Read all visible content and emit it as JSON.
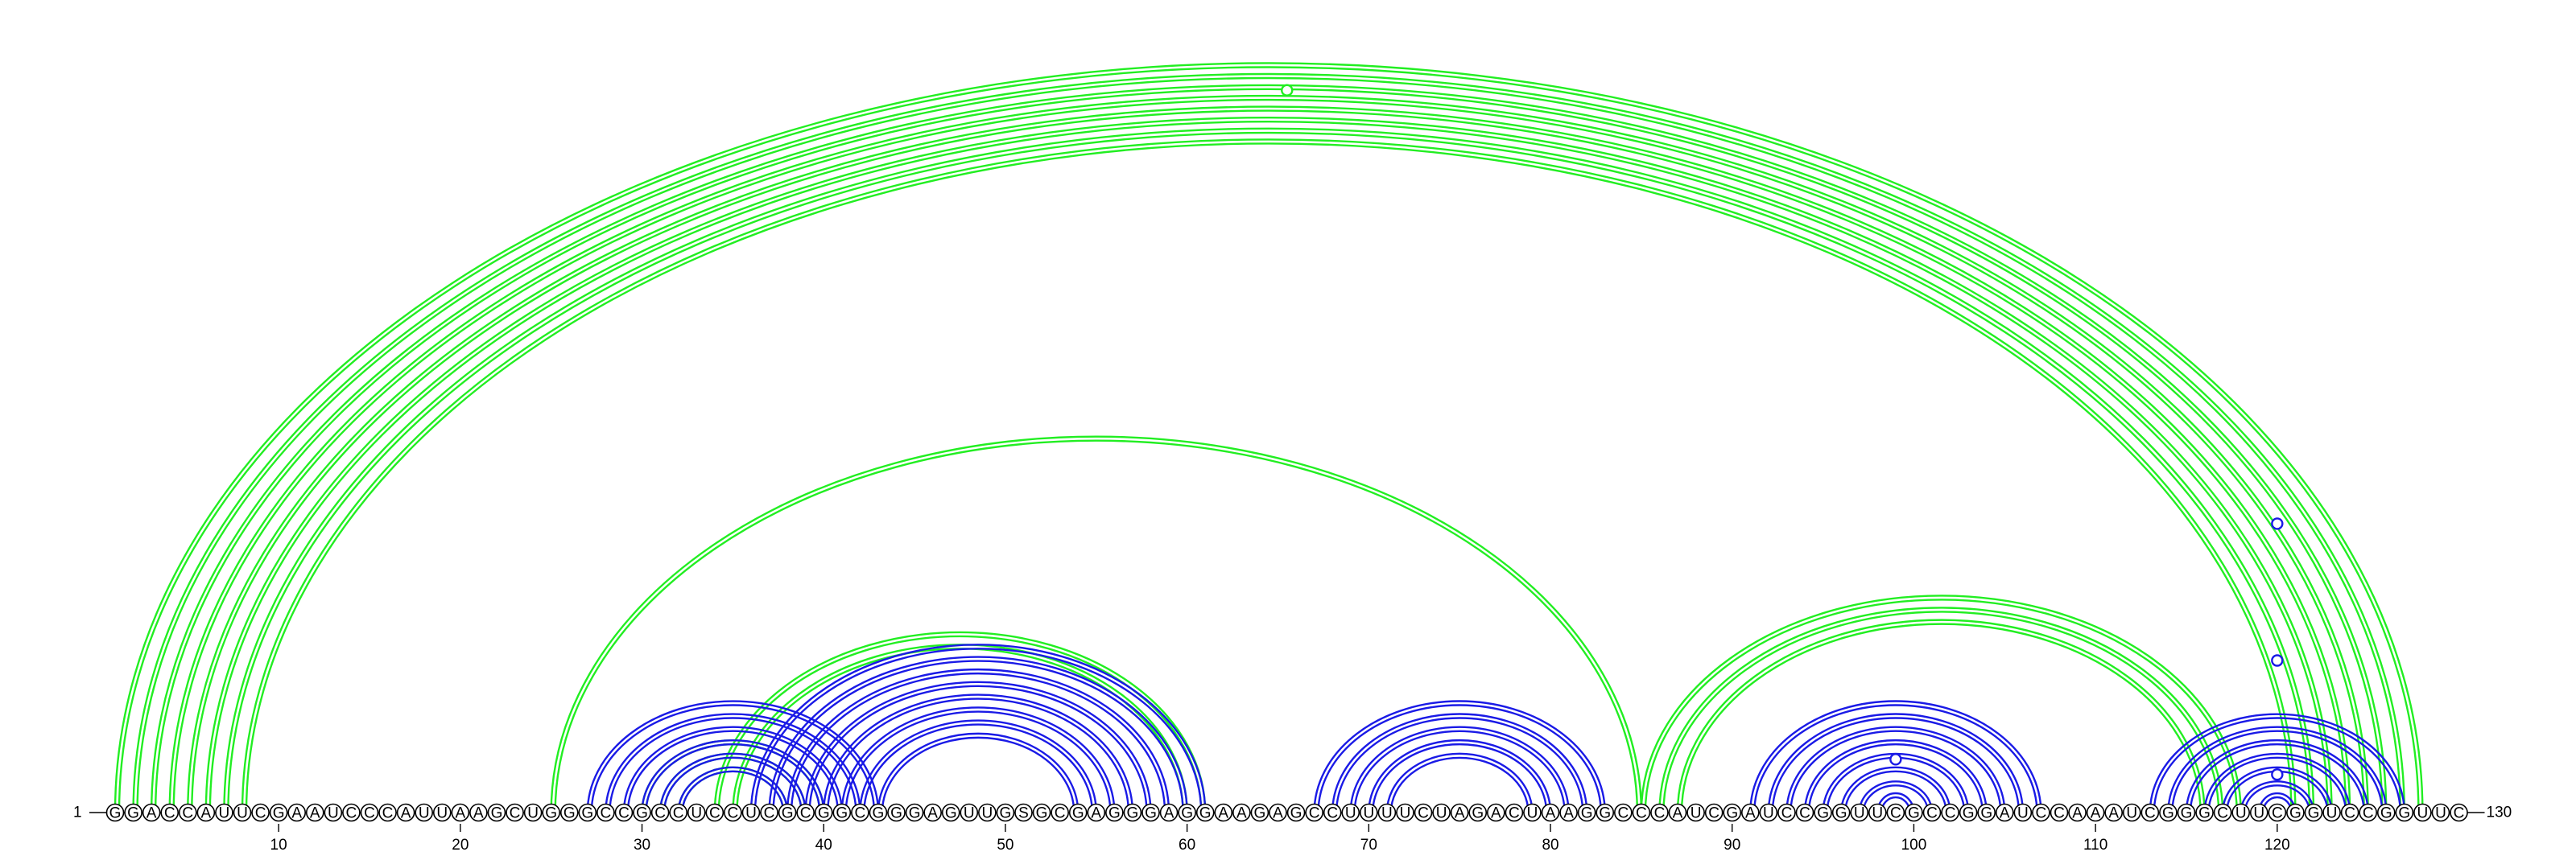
{
  "sequence": "GGACCAUUCGAAUCCCAUUAAGCUGGGCCGCCUCCUCGCGGCGGGAGUUGSGCGAGGGAGGAAGAGCCUUUUCUAGACUAAGGCCCAUCGAUCCGGUUCGCCGGAUCCAAAUCGGGCUUCGGUCCGGUUC",
  "start_label": "1",
  "end_label": "130",
  "ticks": [
    10,
    20,
    30,
    40,
    50,
    60,
    70,
    80,
    90,
    100,
    110,
    120
  ],
  "colors": {
    "green": "#22ee22",
    "blue": "#1a1ae6"
  },
  "arc_sets": [
    {
      "color": "green",
      "pairs": [
        [
          1,
          128
        ],
        [
          2,
          127
        ],
        [
          3,
          126
        ],
        [
          4,
          125
        ],
        [
          5,
          124
        ],
        [
          6,
          123
        ],
        [
          7,
          122
        ],
        [
          8,
          121
        ]
      ]
    },
    {
      "color": "green",
      "pairs": [
        [
          25,
          85
        ]
      ]
    },
    {
      "color": "green",
      "pairs": [
        [
          34,
          61
        ],
        [
          35,
          60
        ]
      ]
    },
    {
      "color": "green",
      "pairs": [
        [
          30,
          40
        ],
        [
          31,
          39
        ],
        [
          32,
          38
        ]
      ]
    },
    {
      "color": "green",
      "pairs": [
        [
          85,
          118
        ],
        [
          86,
          117
        ],
        [
          87,
          116
        ]
      ]
    },
    {
      "color": "blue",
      "pairs": [
        [
          27,
          43
        ],
        [
          28,
          42
        ],
        [
          29,
          41
        ],
        [
          30,
          40
        ],
        [
          31,
          39
        ],
        [
          32,
          38
        ]
      ]
    },
    {
      "color": "blue",
      "pairs": [
        [
          36,
          61
        ],
        [
          37,
          60
        ],
        [
          38,
          59
        ],
        [
          39,
          58
        ],
        [
          40,
          57
        ],
        [
          41,
          56
        ],
        [
          42,
          55
        ],
        [
          43,
          54
        ]
      ]
    },
    {
      "color": "blue",
      "pairs": [
        [
          67,
          83
        ],
        [
          68,
          82
        ],
        [
          69,
          81
        ],
        [
          70,
          80
        ],
        [
          71,
          79
        ]
      ]
    },
    {
      "color": "blue",
      "pairs": [
        [
          91,
          107
        ],
        [
          92,
          106
        ],
        [
          93,
          105
        ],
        [
          94,
          104
        ],
        [
          95,
          103
        ],
        [
          96,
          102
        ],
        [
          97,
          101
        ],
        [
          98,
          100
        ]
      ]
    },
    {
      "color": "blue",
      "pairs": [
        [
          113,
          127
        ],
        [
          114,
          126
        ],
        [
          115,
          125
        ],
        [
          116,
          124
        ],
        [
          117,
          123
        ],
        [
          118,
          122
        ],
        [
          119,
          121
        ]
      ]
    }
  ],
  "bulges": [
    {
      "pos": 65.5,
      "level": 0.95,
      "color": "green"
    },
    {
      "pos": 99,
      "level": 0.07,
      "color": "blue"
    },
    {
      "pos": 120,
      "level": 0.38,
      "color": "blue"
    },
    {
      "pos": 120,
      "level": 0.2,
      "color": "blue"
    },
    {
      "pos": 120,
      "level": 0.05,
      "color": "blue"
    }
  ]
}
